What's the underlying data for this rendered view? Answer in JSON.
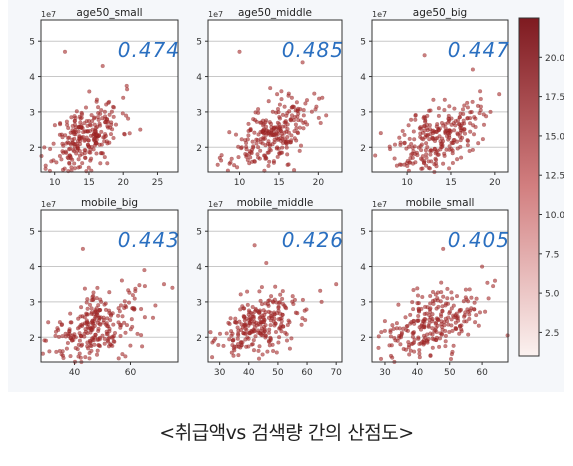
{
  "caption": "<취급액vs 검색량 간의 산점도>",
  "colors": {
    "point": "#a52a2a",
    "grid": "#c8c8c8",
    "annotation": "#2a6fc0",
    "axis": "#333333"
  },
  "colorbar": {
    "ticks": [
      "2.5",
      "5.0",
      "7.5",
      "10.0",
      "12.5",
      "15.0",
      "17.5",
      "20.0"
    ],
    "range": [
      1,
      22.5
    ],
    "colors": [
      "#fbf2f0",
      "#7e1a20"
    ]
  },
  "chart_data": [
    {
      "type": "scatter",
      "title": "age50_small",
      "annotation": "0.474",
      "exponent": "1e7",
      "xlim": [
        8,
        28
      ],
      "ylim": [
        1.3,
        5.6
      ],
      "xticks": [
        10,
        15,
        20,
        25
      ],
      "yticks": [
        2,
        3,
        4,
        5
      ],
      "cloud": {
        "x_mean": 14.5,
        "x_sd": 2.6,
        "y_mean": 2.3,
        "y_sd": 0.45,
        "slope": 0.09,
        "n": 260,
        "seed": 11
      },
      "points": [
        [
          11.5,
          4.7
        ],
        [
          17.0,
          4.3
        ],
        [
          20.0,
          3.4
        ],
        [
          22.5,
          2.5
        ],
        [
          9.5,
          1.6
        ]
      ]
    },
    {
      "type": "scatter",
      "title": "age50_middle",
      "annotation": "0.485",
      "exponent": "1e7",
      "xlim": [
        6,
        23
      ],
      "ylim": [
        1.3,
        5.6
      ],
      "xticks": [
        10,
        15,
        20
      ],
      "yticks": [
        2,
        3,
        4,
        5
      ],
      "cloud": {
        "x_mean": 14.0,
        "x_sd": 2.5,
        "y_mean": 2.3,
        "y_sd": 0.45,
        "slope": 0.1,
        "n": 260,
        "seed": 23
      },
      "points": [
        [
          10.0,
          4.7
        ],
        [
          18.0,
          4.4
        ],
        [
          20.5,
          3.4
        ],
        [
          21.0,
          2.9
        ],
        [
          7.5,
          1.7
        ]
      ]
    },
    {
      "type": "scatter",
      "title": "age50_big",
      "annotation": "0.447",
      "exponent": "1e7",
      "xlim": [
        6,
        21.5
      ],
      "ylim": [
        1.3,
        5.6
      ],
      "xticks": [
        10,
        15,
        20
      ],
      "yticks": [
        2,
        3,
        4,
        5
      ],
      "cloud": {
        "x_mean": 13.5,
        "x_sd": 2.3,
        "y_mean": 2.3,
        "y_sd": 0.45,
        "slope": 0.1,
        "n": 260,
        "seed": 37
      },
      "points": [
        [
          12.0,
          4.6
        ],
        [
          17.5,
          4.2
        ],
        [
          20.5,
          3.5
        ],
        [
          19.5,
          3.0
        ],
        [
          7.0,
          2.4
        ]
      ]
    },
    {
      "type": "scatter",
      "title": "mobile_big",
      "annotation": "0.443",
      "exponent": "1e7",
      "xlim": [
        28,
        77
      ],
      "ylim": [
        1.3,
        5.6
      ],
      "xticks": [
        40,
        60
      ],
      "yticks": [
        2,
        3,
        4,
        5
      ],
      "cloud": {
        "x_mean": 48,
        "x_sd": 8,
        "y_mean": 2.3,
        "y_sd": 0.45,
        "slope": 0.03,
        "n": 260,
        "seed": 41
      },
      "points": [
        [
          43,
          4.5
        ],
        [
          65,
          3.9
        ],
        [
          72,
          3.5
        ],
        [
          75,
          3.4
        ],
        [
          31,
          1.6
        ]
      ]
    },
    {
      "type": "scatter",
      "title": "mobile_middle",
      "annotation": "0.426",
      "exponent": "1e7",
      "xlim": [
        26,
        72
      ],
      "ylim": [
        1.3,
        5.6
      ],
      "xticks": [
        30,
        40,
        50,
        60,
        70
      ],
      "yticks": [
        2,
        3,
        4,
        5
      ],
      "cloud": {
        "x_mean": 44,
        "x_sd": 7.5,
        "y_mean": 2.3,
        "y_sd": 0.45,
        "slope": 0.03,
        "n": 260,
        "seed": 53
      },
      "points": [
        [
          42,
          4.6
        ],
        [
          46,
          4.1
        ],
        [
          70,
          3.5
        ],
        [
          65,
          3.0
        ],
        [
          28,
          1.9
        ]
      ]
    },
    {
      "type": "scatter",
      "title": "mobile_small",
      "annotation": "0.405",
      "exponent": "1e7",
      "xlim": [
        26,
        68
      ],
      "ylim": [
        1.3,
        5.6
      ],
      "xticks": [
        30,
        40,
        50,
        60
      ],
      "yticks": [
        2,
        3,
        4,
        5
      ],
      "cloud": {
        "x_mean": 44,
        "x_sd": 7,
        "y_mean": 2.3,
        "y_sd": 0.45,
        "slope": 0.03,
        "n": 260,
        "seed": 67
      },
      "points": [
        [
          48,
          4.5
        ],
        [
          60,
          4.0
        ],
        [
          64,
          3.6
        ],
        [
          62,
          3.1
        ],
        [
          28,
          1.7
        ]
      ]
    }
  ]
}
